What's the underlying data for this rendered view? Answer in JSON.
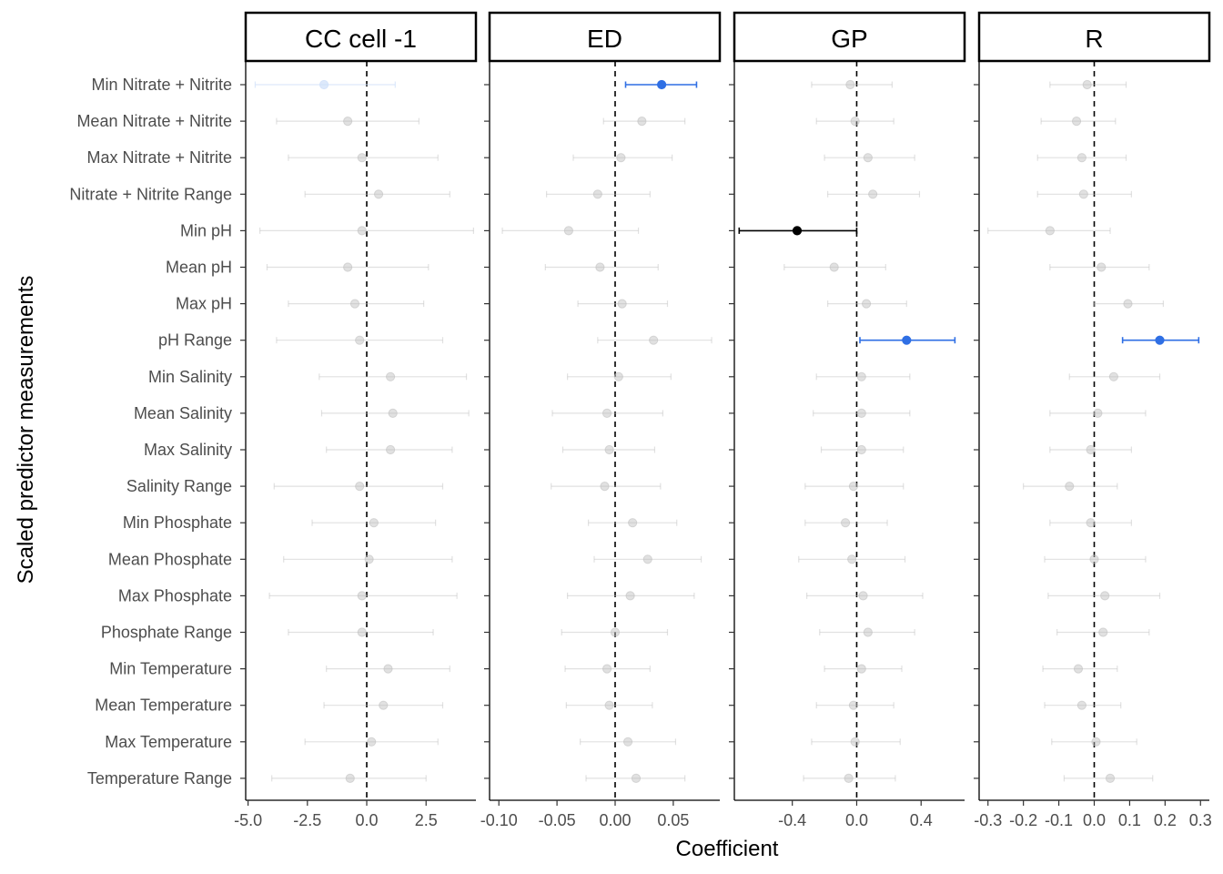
{
  "chart_data": {
    "type": "scatter",
    "subtype": "coefficient-plot-with-error-bars",
    "xlabel": "Coefficient",
    "ylabel": "Scaled predictor measurements",
    "grid": false,
    "legend": "none",
    "reference_line": 0,
    "colors": {
      "non_significant": "#bdbdbd",
      "positive_significant": "#2f6fe4",
      "negative_significant": "#000000"
    },
    "predictors": [
      "Min Nitrate + Nitrite",
      "Mean Nitrate + Nitrite",
      "Max Nitrate + Nitrite",
      "Nitrate + Nitrite Range",
      "Min pH",
      "Mean pH",
      "Max pH",
      "pH Range",
      "Min Salinity",
      "Mean Salinity",
      "Max Salinity",
      "Salinity Range",
      "Min Phosphate",
      "Mean Phosphate",
      "Max Phosphate",
      "Phosphate Range",
      "Min Temperature",
      "Mean Temperature",
      "Max Temperature",
      "Temperature Range"
    ],
    "panels": [
      {
        "name": "CC cell -1",
        "xlim": [
          -5.1,
          4.6
        ],
        "ticks": [
          -5.0,
          -2.5,
          0.0,
          2.5
        ],
        "tick_labels": [
          "-5.0",
          "-2.5",
          "0.0",
          "2.5"
        ],
        "estimates": [
          -1.8,
          -0.8,
          -0.2,
          0.5,
          -0.2,
          -0.8,
          -0.5,
          -0.3,
          1.0,
          1.1,
          1.0,
          -0.3,
          0.3,
          0.1,
          -0.2,
          -0.2,
          0.9,
          0.7,
          0.2,
          -0.7
        ],
        "lower": [
          -4.7,
          -3.8,
          -3.3,
          -2.6,
          -4.5,
          -4.2,
          -3.3,
          -3.8,
          -2.0,
          -1.9,
          -1.7,
          -3.9,
          -2.3,
          -3.5,
          -4.1,
          -3.3,
          -1.7,
          -1.8,
          -2.6,
          -4.0
        ],
        "upper": [
          1.2,
          2.2,
          3.0,
          3.5,
          4.5,
          2.6,
          2.4,
          3.2,
          4.2,
          4.3,
          3.6,
          3.2,
          2.9,
          3.6,
          3.8,
          2.8,
          3.5,
          3.2,
          3.0,
          2.5
        ],
        "significance": [
          "pos_faint",
          "ns",
          "ns",
          "ns",
          "ns",
          "ns",
          "ns",
          "ns",
          "ns",
          "ns",
          "ns",
          "ns",
          "ns",
          "ns",
          "ns",
          "ns",
          "ns",
          "ns",
          "ns",
          "ns"
        ]
      },
      {
        "name": "ED",
        "xlim": [
          -0.108,
          0.09
        ],
        "ticks": [
          -0.1,
          -0.05,
          0.0,
          0.05
        ],
        "tick_labels": [
          "-0.10",
          "-0.05",
          "0.00",
          "0.05"
        ],
        "estimates": [
          0.04,
          0.023,
          0.005,
          -0.015,
          -0.04,
          -0.013,
          0.006,
          0.033,
          0.003,
          -0.007,
          -0.005,
          -0.009,
          0.015,
          0.028,
          0.013,
          0.0,
          -0.007,
          -0.005,
          0.011,
          0.018
        ],
        "lower": [
          0.009,
          -0.01,
          -0.036,
          -0.059,
          -0.097,
          -0.06,
          -0.032,
          -0.015,
          -0.041,
          -0.054,
          -0.045,
          -0.055,
          -0.023,
          -0.018,
          -0.041,
          -0.046,
          -0.043,
          -0.042,
          -0.03,
          -0.025
        ],
        "upper": [
          0.07,
          0.06,
          0.049,
          0.03,
          0.02,
          0.037,
          0.045,
          0.083,
          0.048,
          0.041,
          0.034,
          0.039,
          0.053,
          0.074,
          0.068,
          0.045,
          0.03,
          0.032,
          0.052,
          0.06
        ],
        "significance": [
          "pos",
          "ns",
          "ns",
          "ns",
          "ns",
          "ns",
          "ns",
          "ns",
          "ns",
          "ns",
          "ns",
          "ns",
          "ns",
          "ns",
          "ns",
          "ns",
          "ns",
          "ns",
          "ns",
          "ns"
        ]
      },
      {
        "name": "GP",
        "xlim": [
          -0.76,
          0.67
        ],
        "ticks": [
          -0.4,
          0.0,
          0.4
        ],
        "tick_labels": [
          "-0.4",
          "0.0",
          "0.4"
        ],
        "estimates": [
          -0.04,
          -0.01,
          0.07,
          0.1,
          -0.37,
          -0.14,
          0.06,
          0.31,
          0.03,
          0.03,
          0.03,
          -0.02,
          -0.07,
          -0.03,
          0.04,
          0.07,
          0.03,
          -0.02,
          -0.01,
          -0.05
        ],
        "lower": [
          -0.28,
          -0.25,
          -0.2,
          -0.18,
          -0.73,
          -0.45,
          -0.18,
          0.02,
          -0.25,
          -0.27,
          -0.22,
          -0.32,
          -0.32,
          -0.36,
          -0.31,
          -0.23,
          -0.2,
          -0.25,
          -0.28,
          -0.33
        ],
        "upper": [
          0.22,
          0.23,
          0.36,
          0.39,
          0.0,
          0.18,
          0.31,
          0.61,
          0.33,
          0.33,
          0.29,
          0.29,
          0.19,
          0.3,
          0.41,
          0.36,
          0.28,
          0.23,
          0.27,
          0.24
        ],
        "significance": [
          "ns",
          "ns",
          "ns",
          "ns",
          "neg",
          "ns",
          "ns",
          "pos",
          "ns",
          "ns",
          "ns",
          "ns",
          "ns",
          "ns",
          "ns",
          "ns",
          "ns",
          "ns",
          "ns",
          "ns"
        ]
      },
      {
        "name": "R",
        "xlim": [
          -0.325,
          0.325
        ],
        "ticks": [
          -0.3,
          -0.2,
          -0.1,
          0.0,
          0.1,
          0.2,
          0.3
        ],
        "tick_labels": [
          "-0.3",
          "-0.2",
          "-0.1",
          "0.0",
          "0.1",
          "0.2",
          "0.3"
        ],
        "estimates": [
          -0.02,
          -0.05,
          -0.035,
          -0.03,
          -0.125,
          0.02,
          0.095,
          0.185,
          0.055,
          0.01,
          -0.01,
          -0.07,
          -0.01,
          0.0,
          0.03,
          0.025,
          -0.045,
          -0.035,
          0.005,
          0.045
        ],
        "lower": [
          -0.125,
          -0.15,
          -0.16,
          -0.16,
          -0.3,
          -0.125,
          0.0,
          0.08,
          -0.07,
          -0.125,
          -0.125,
          -0.2,
          -0.125,
          -0.14,
          -0.13,
          -0.105,
          -0.145,
          -0.14,
          -0.12,
          -0.085
        ],
        "upper": [
          0.09,
          0.06,
          0.09,
          0.105,
          0.045,
          0.155,
          0.195,
          0.295,
          0.185,
          0.145,
          0.105,
          0.065,
          0.105,
          0.145,
          0.185,
          0.155,
          0.065,
          0.075,
          0.12,
          0.165
        ],
        "significance": [
          "ns",
          "ns",
          "ns",
          "ns",
          "ns",
          "ns",
          "ns",
          "pos",
          "ns",
          "ns",
          "ns",
          "ns",
          "ns",
          "ns",
          "ns",
          "ns",
          "ns",
          "ns",
          "ns",
          "ns"
        ]
      }
    ]
  }
}
